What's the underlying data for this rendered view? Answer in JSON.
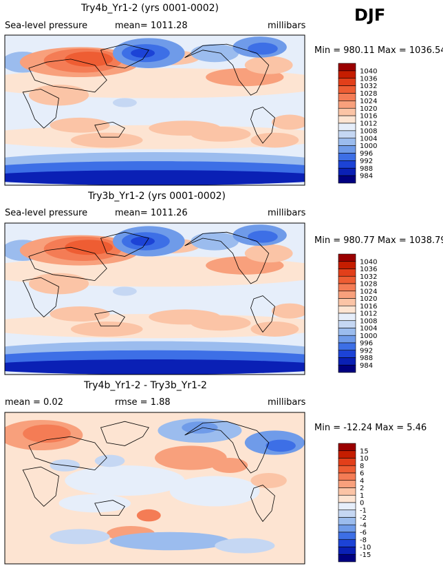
{
  "season": "DJF",
  "chart_data": [
    {
      "type": "heatmap",
      "title": "Try4b_Yr1-2 (yrs 0001-0002)",
      "variable": "Sea-level pressure",
      "mean_label": "mean= 1011.28",
      "units": "millibars",
      "minmax": "Min = 980.11 Max = 1036.54",
      "min": 980.11,
      "max": 1036.54,
      "levels": [
        "1040",
        "1036",
        "1032",
        "1028",
        "1024",
        "1020",
        "1016",
        "1012",
        "1008",
        "1004",
        "1000",
        "996",
        "992",
        "988",
        "984"
      ],
      "colors": [
        "#9a0000",
        "#c51d00",
        "#e23f1a",
        "#ee5d33",
        "#f47c55",
        "#f8a07c",
        "#fbc4a6",
        "#fde4d2",
        "#e6eefa",
        "#c5d7f3",
        "#9bbcee",
        "#6f9be9",
        "#3d6fe6",
        "#1c43d6",
        "#0a20b5",
        "#000080"
      ]
    },
    {
      "type": "heatmap",
      "title": "Try3b_Yr1-2 (yrs 0001-0002)",
      "variable": "Sea-level pressure",
      "mean_label": "mean= 1011.26",
      "units": "millibars",
      "minmax": "Min = 980.77 Max = 1038.79",
      "min": 980.77,
      "max": 1038.79,
      "levels": [
        "1040",
        "1036",
        "1032",
        "1028",
        "1024",
        "1020",
        "1016",
        "1012",
        "1008",
        "1004",
        "1000",
        "996",
        "992",
        "988",
        "984"
      ],
      "colors": [
        "#9a0000",
        "#c51d00",
        "#e23f1a",
        "#ee5d33",
        "#f47c55",
        "#f8a07c",
        "#fbc4a6",
        "#fde4d2",
        "#e6eefa",
        "#c5d7f3",
        "#9bbcee",
        "#6f9be9",
        "#3d6fe6",
        "#1c43d6",
        "#0a20b5",
        "#000080"
      ]
    },
    {
      "type": "heatmap",
      "title": "Try4b_Yr1-2 - Try3b_Yr1-2",
      "variable": "mean =    0.02",
      "mean_label": "rmse =    1.88",
      "units": "millibars",
      "minmax": "Min = -12.24 Max =    5.46",
      "min": -12.24,
      "max": 5.46,
      "levels": [
        "15",
        "10",
        "8",
        "6",
        "4",
        "2",
        "1",
        "0",
        "-1",
        "-2",
        "-4",
        "-6",
        "-8",
        "-10",
        "-15"
      ],
      "colors": [
        "#9a0000",
        "#c51d00",
        "#e23f1a",
        "#ee5d33",
        "#f47c55",
        "#f8a07c",
        "#fbc4a6",
        "#fde4d2",
        "#e6eefa",
        "#c5d7f3",
        "#9bbcee",
        "#6f9be9",
        "#3d6fe6",
        "#1c43d6",
        "#0a20b5",
        "#000080"
      ]
    }
  ]
}
